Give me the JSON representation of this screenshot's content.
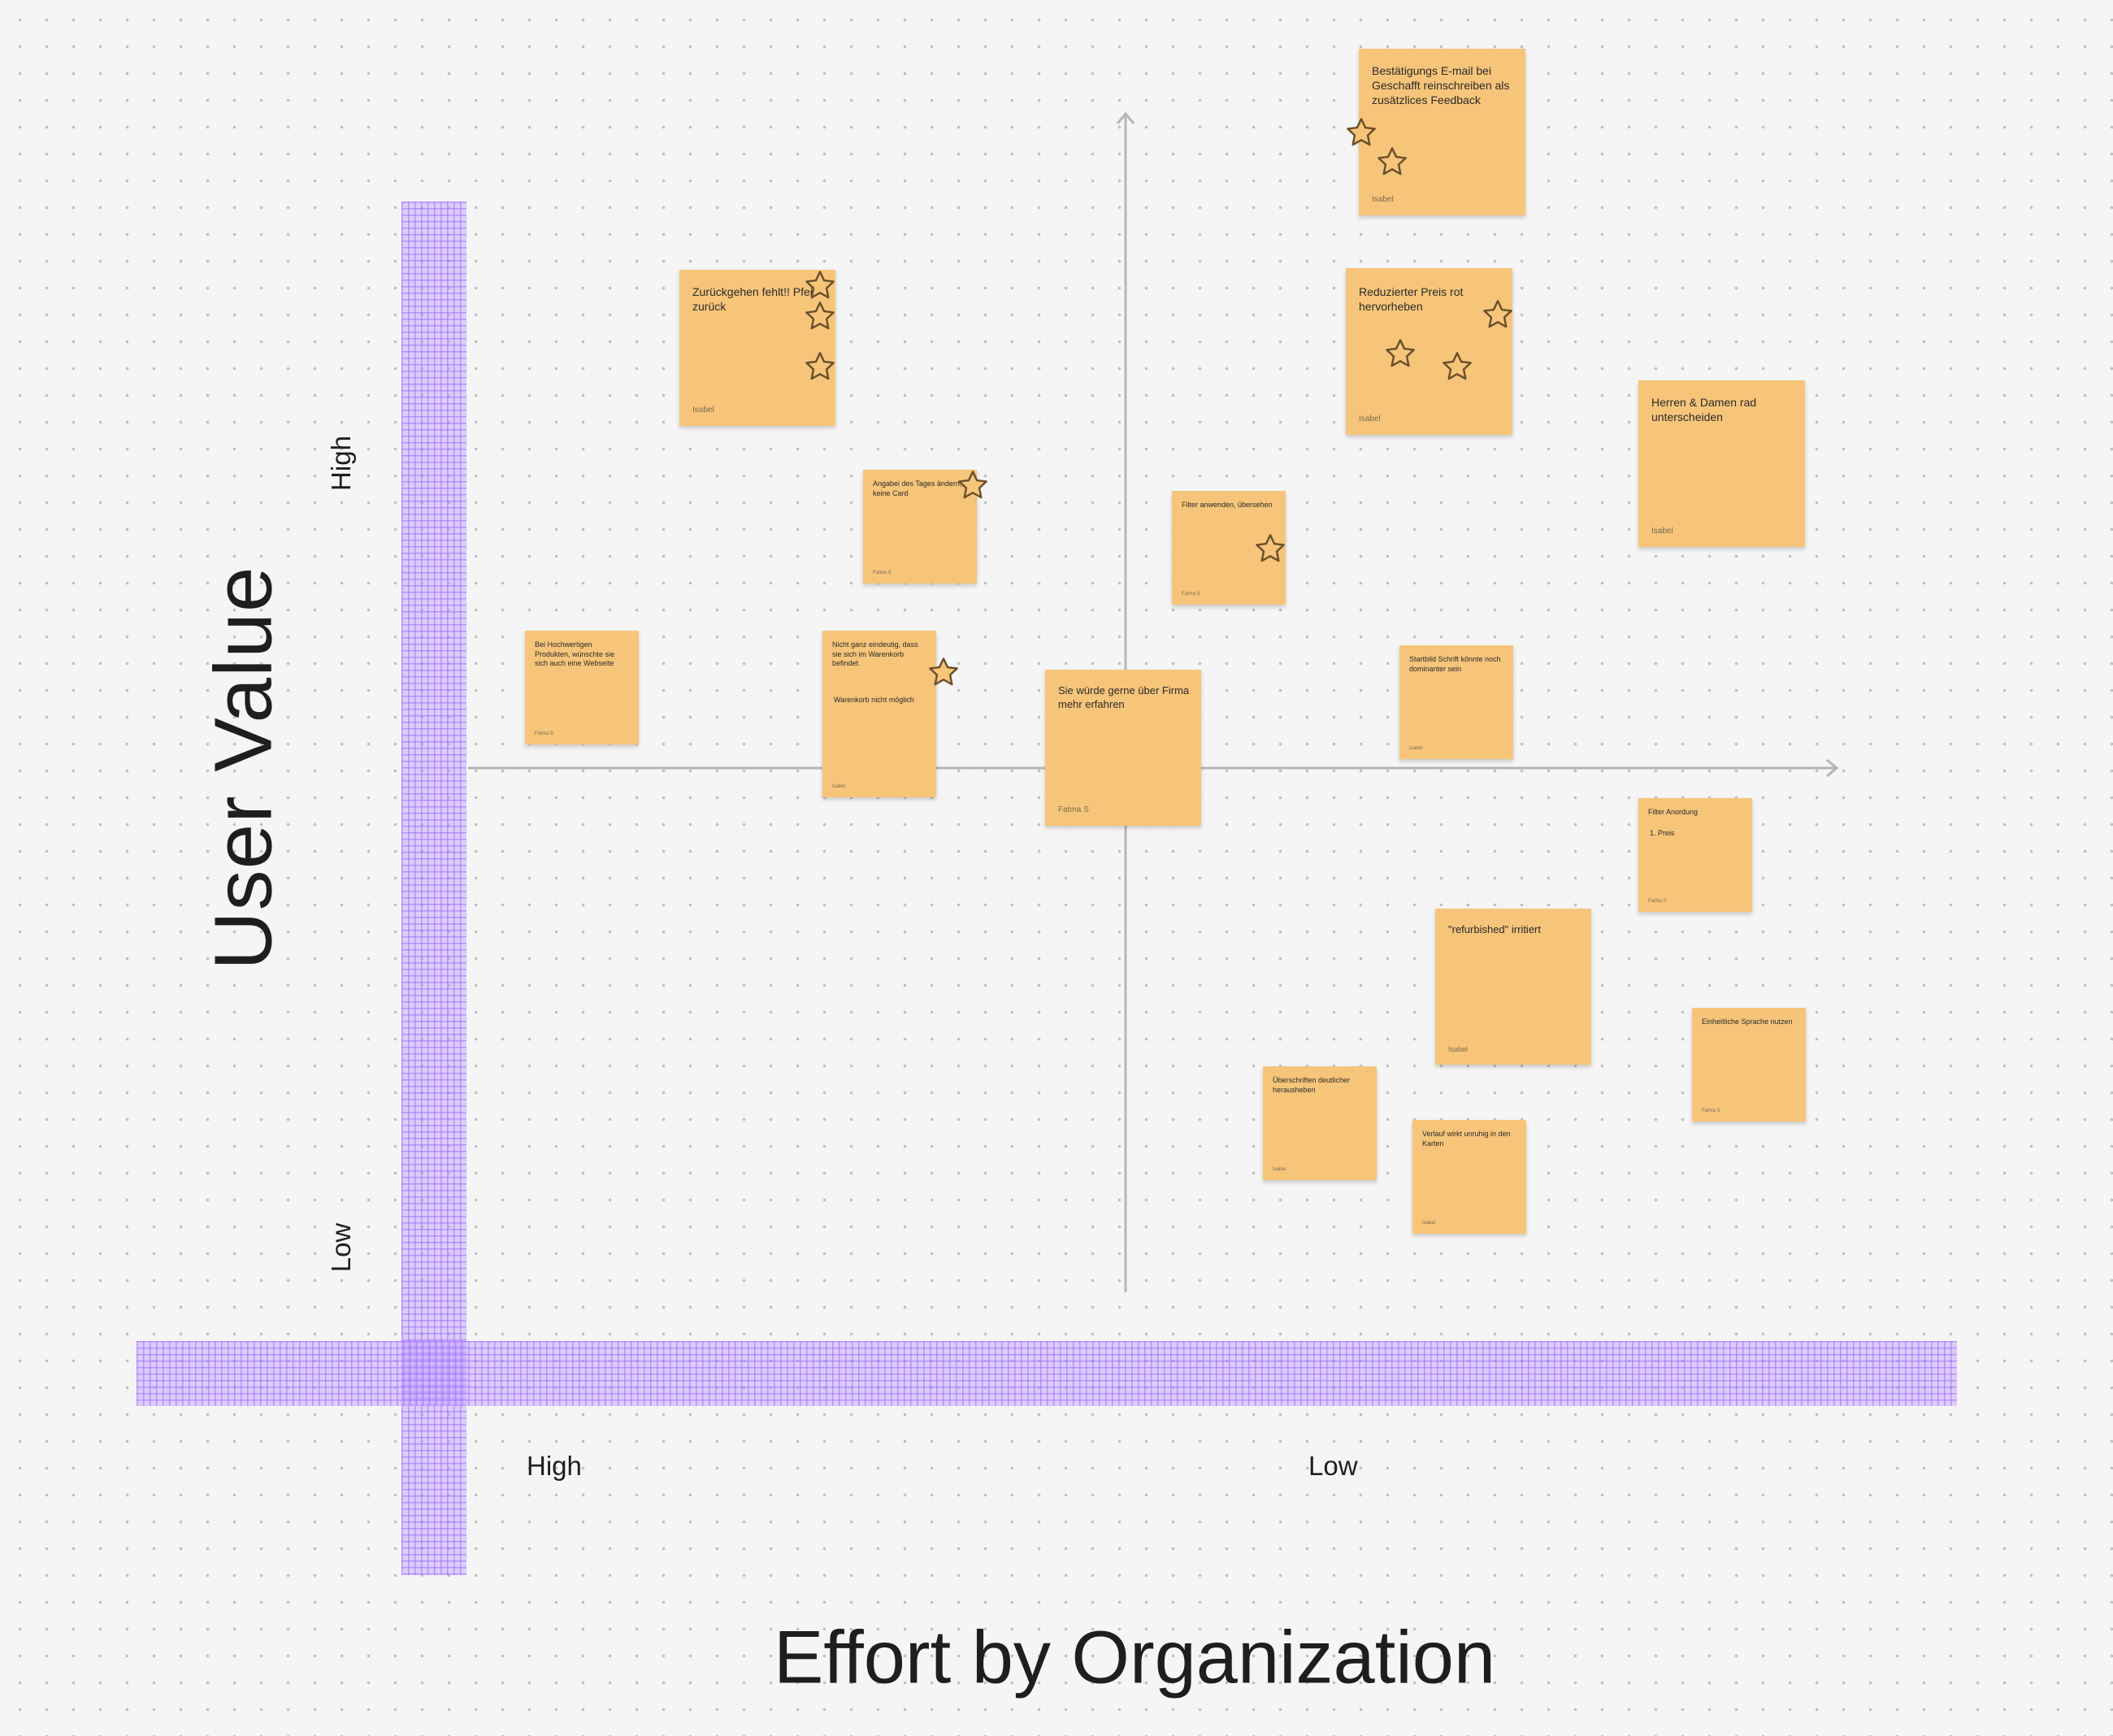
{
  "axes": {
    "y_title": "User Value",
    "y_high": "High",
    "y_low": "Low",
    "x_title": "Effort by Organization",
    "x_high": "High",
    "x_low": "Low"
  },
  "colors": {
    "sticky": "#f6c57a",
    "tape": "#c8aaff",
    "axis_line": "#b5b5b5",
    "star_fill": "#f6c57a",
    "star_stroke": "#6b4f2a"
  },
  "stickies": [
    {
      "text": "Bestätigungs E-mail bei Geschafft reinschreiben als zusätzlices Feedback",
      "author": "Isabel"
    },
    {
      "text": "Zurückgehen fehlt!! Pfeil zurück",
      "author": "Isabel"
    },
    {
      "text": "Reduzierter Preis rot hervorheben",
      "author": "Isabel"
    },
    {
      "text": "Herren & Damen rad unterscheiden",
      "author": "Isabel"
    },
    {
      "text": "Angabei des Tages ändern, keine Card",
      "author": "Fatma S"
    },
    {
      "text": "Filter anwenden, übersehen",
      "author": "Fatma S"
    },
    {
      "text": "Bei Hochwertigen Produkten, wünschte sie sich auch eine Webseite",
      "author": "Fatma S"
    },
    {
      "text": "Nicht ganz eindeutig, dass sie sich im Warenkorb befindet.",
      "text2": "Warenkorb nicht möglich",
      "author": "Isabel"
    },
    {
      "text": "Sie würde gerne über Firma mehr erfahren",
      "author": "Fatma S"
    },
    {
      "text": "Startbild Schrift könnte noch dominanter sein",
      "author": "Isabel"
    },
    {
      "text": "Filter Anordung",
      "text2": "1. Preis",
      "author": "Fatma S"
    },
    {
      "text": "\"refurbished\" irritiert",
      "author": "Isabel"
    },
    {
      "text": "Einheitliche Sprache nutzen",
      "author": "Fatma S"
    },
    {
      "text": "Überschriften deutlicher herausheben",
      "author": "Isabel"
    },
    {
      "text": "Verlauf wirkt unruhig in den Karten",
      "author": "Isabel"
    }
  ]
}
